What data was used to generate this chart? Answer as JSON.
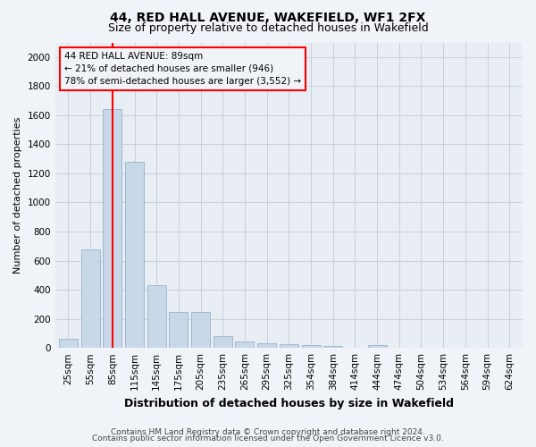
{
  "title1": "44, RED HALL AVENUE, WAKEFIELD, WF1 2FX",
  "title2": "Size of property relative to detached houses in Wakefield",
  "xlabel": "Distribution of detached houses by size in Wakefield",
  "ylabel": "Number of detached properties",
  "categories": [
    "25sqm",
    "55sqm",
    "85sqm",
    "115sqm",
    "145sqm",
    "175sqm",
    "205sqm",
    "235sqm",
    "265sqm",
    "295sqm",
    "325sqm",
    "354sqm",
    "384sqm",
    "414sqm",
    "444sqm",
    "474sqm",
    "504sqm",
    "534sqm",
    "564sqm",
    "594sqm",
    "624sqm"
  ],
  "values": [
    60,
    680,
    1640,
    1280,
    430,
    245,
    245,
    80,
    45,
    30,
    25,
    20,
    12,
    0,
    20,
    0,
    0,
    0,
    0,
    0,
    0
  ],
  "bar_color": "#c8d8e8",
  "bar_edgecolor": "#a0b8d0",
  "redline_x": 2,
  "annotation_line1": "44 RED HALL AVENUE: 89sqm",
  "annotation_line2": "← 21% of detached houses are smaller (946)",
  "annotation_line3": "78% of semi-detached houses are larger (3,552) →",
  "annotation_box_edgecolor": "red",
  "redline_color": "red",
  "ylim": [
    0,
    2100
  ],
  "yticks": [
    0,
    200,
    400,
    600,
    800,
    1000,
    1200,
    1400,
    1600,
    1800,
    2000
  ],
  "grid_color": "#c8d0dc",
  "footer1": "Contains HM Land Registry data © Crown copyright and database right 2024.",
  "footer2": "Contains public sector information licensed under the Open Government Licence v3.0.",
  "bg_color": "#f0f4f8",
  "plot_bg_color": "#e8eef4",
  "title1_fontsize": 10,
  "title2_fontsize": 9,
  "ylabel_fontsize": 8,
  "xlabel_fontsize": 9,
  "tick_fontsize": 7.5,
  "footer_fontsize": 6.5
}
